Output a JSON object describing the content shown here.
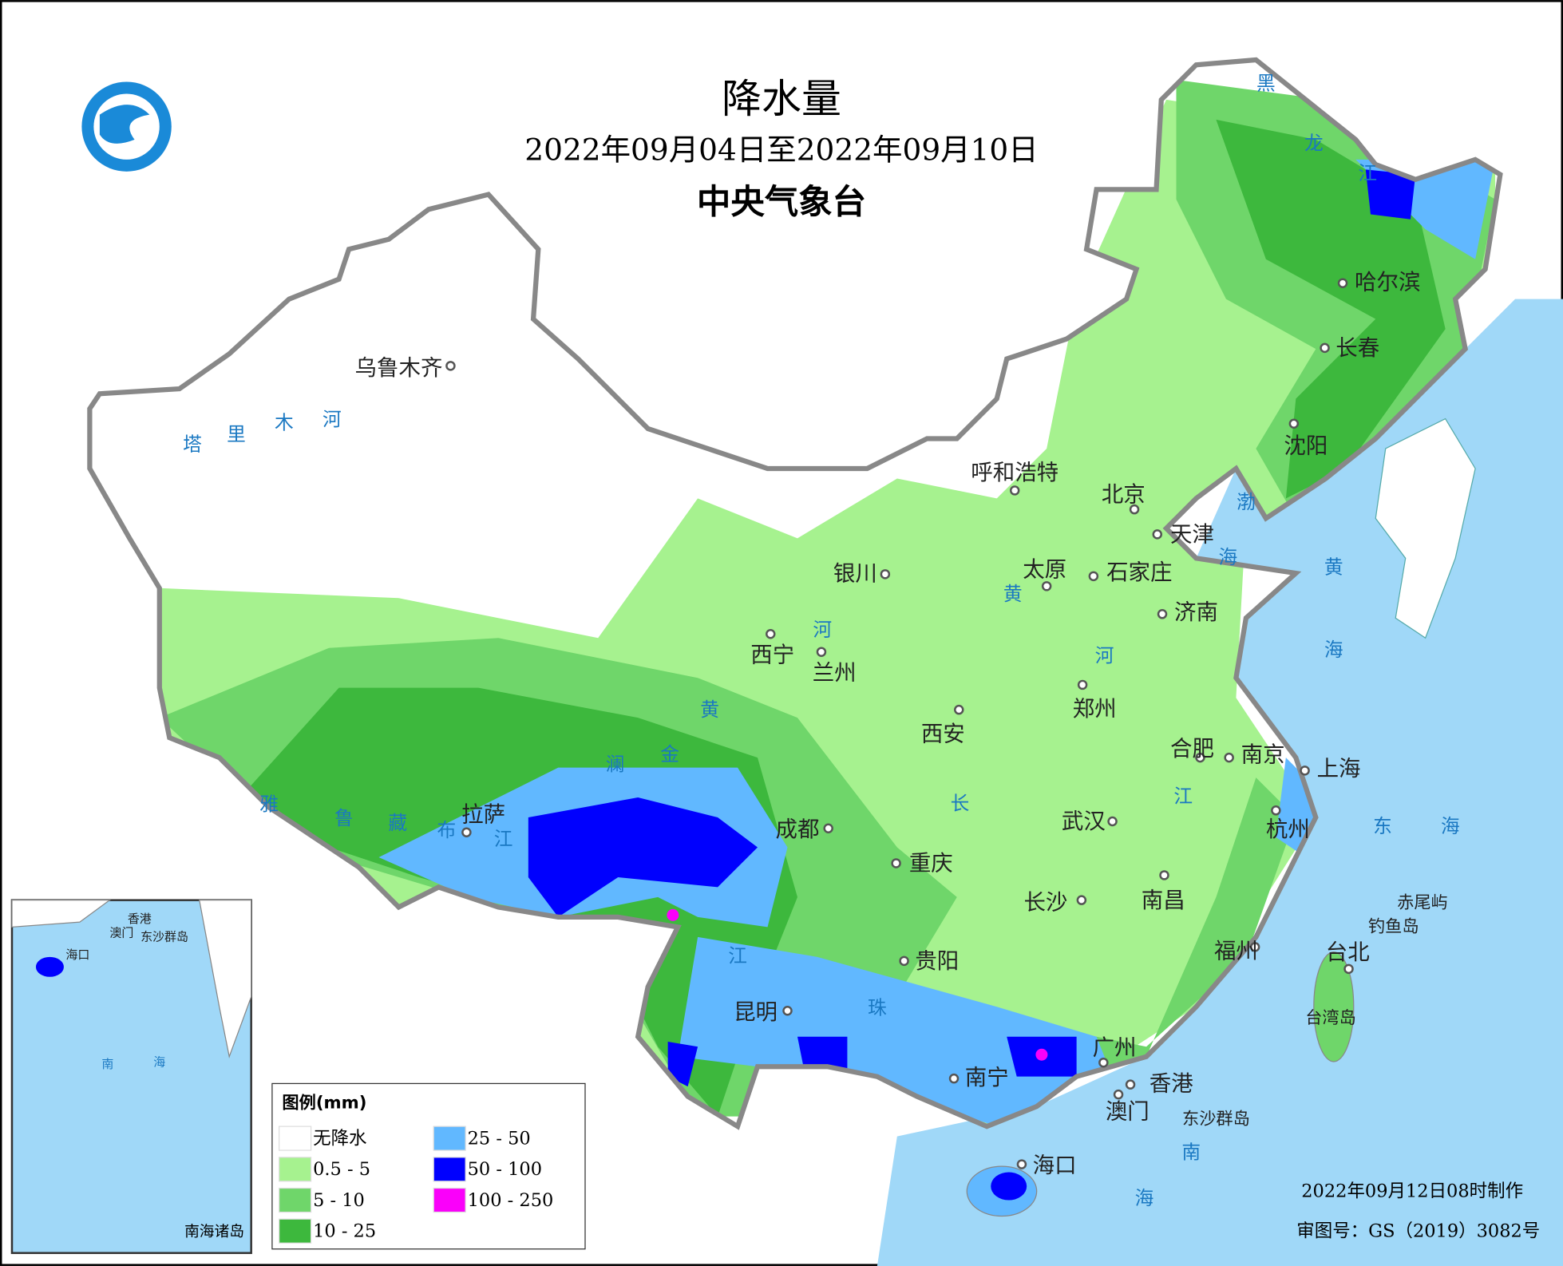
{
  "header": {
    "title": "降水量",
    "date_range": "2022年09月04日至2022年09月10日",
    "issuer": "中央气象台"
  },
  "legend": {
    "title": "图例(mm)",
    "items": [
      {
        "label": "无降水",
        "color": "#ffffff"
      },
      {
        "label": "0.5 - 5",
        "color": "#a6f28f"
      },
      {
        "label": "5 - 10",
        "color": "#6fd66a"
      },
      {
        "label": "10 - 25",
        "color": "#3db83d"
      },
      {
        "label": "25 - 50",
        "color": "#61b8ff"
      },
      {
        "label": "50 - 100",
        "color": "#0000fe"
      },
      {
        "label": "100 - 250",
        "color": "#fa00fa"
      }
    ]
  },
  "cities": [
    "乌鲁木齐",
    "哈尔滨",
    "长春",
    "沈阳",
    "呼和浩特",
    "北京",
    "天津",
    "银川",
    "太原",
    "石家庄",
    "济南",
    "西宁",
    "兰州",
    "郑州",
    "西安",
    "合肥",
    "南京",
    "上海",
    "拉萨",
    "成都",
    "武汉",
    "杭州",
    "重庆",
    "长沙",
    "南昌",
    "福州",
    "台北",
    "贵阳",
    "昆明",
    "南宁",
    "广州",
    "香港",
    "澳门",
    "海口"
  ],
  "map_labels": [
    "黑",
    "龙",
    "江",
    "渤",
    "海",
    "黄",
    "海",
    "东",
    "海",
    "南",
    "海",
    "塔",
    "里",
    "木",
    "河",
    "雅",
    "鲁",
    "藏",
    "布",
    "江",
    "澜",
    "金",
    "黄",
    "河",
    "黄",
    "河",
    "长",
    "江",
    "江",
    "珠",
    "赤尾屿",
    "钓鱼岛",
    "台湾岛",
    "东沙群岛"
  ],
  "inset": {
    "title": "南海诸岛",
    "labels": [
      "香港",
      "澳门",
      "东沙群岛",
      "海口",
      "南",
      "海"
    ]
  },
  "footer": {
    "made": "2022年09月12日08时制作",
    "review": "审图号：GS（2019）3082号"
  }
}
